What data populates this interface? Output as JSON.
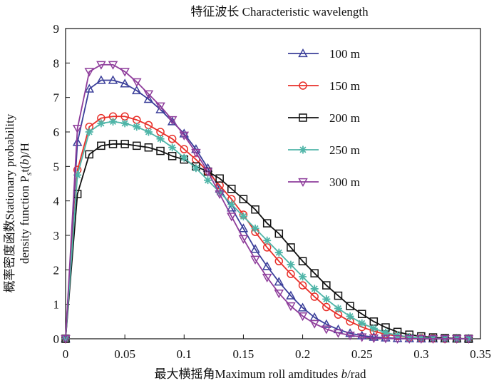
{
  "chart_data": {
    "type": "line",
    "title": "特征波长 Characteristic wavelength",
    "xlabel_prefix": "最大横摇角Maximum roll amditudes ",
    "xlabel_var": "b",
    "xlabel_suffix": "/rad",
    "ylabel_line1": "概率密度函数Stationary probability",
    "ylabel_line2_prefix": "density function P",
    "ylabel_line2_sub": "s",
    "ylabel_line2_mid": "t(",
    "ylabel_line2_var": "b",
    "ylabel_line2_suffix": ")/H",
    "xlim": [
      0,
      0.35
    ],
    "ylim": [
      0,
      9
    ],
    "xticks": [
      0,
      0.05,
      0.1,
      0.15,
      0.2,
      0.25,
      0.3,
      0.35
    ],
    "xtick_labels": [
      "0",
      "0.05",
      "0.1",
      "0.15",
      "0.2",
      "0.25",
      "0.3",
      "0.35"
    ],
    "yticks": [
      0,
      1,
      2,
      3,
      4,
      5,
      6,
      7,
      8,
      9
    ],
    "ytick_labels": [
      "0",
      "1",
      "2",
      "3",
      "4",
      "5",
      "6",
      "7",
      "8",
      "9"
    ],
    "legend_position": "top-right",
    "x": [
      0,
      0.01,
      0.02,
      0.03,
      0.04,
      0.05,
      0.06,
      0.07,
      0.08,
      0.09,
      0.1,
      0.11,
      0.12,
      0.13,
      0.14,
      0.15,
      0.16,
      0.17,
      0.18,
      0.19,
      0.2,
      0.21,
      0.22,
      0.23,
      0.24,
      0.25,
      0.26,
      0.27,
      0.28,
      0.29,
      0.3,
      0.31,
      0.32,
      0.33,
      0.34
    ],
    "series": [
      {
        "name": "100 m",
        "color": "#3b3f9a",
        "marker": "triangle-up",
        "values": [
          0,
          5.7,
          7.25,
          7.5,
          7.5,
          7.4,
          7.2,
          6.95,
          6.65,
          6.3,
          5.95,
          5.5,
          4.95,
          4.35,
          3.8,
          3.2,
          2.6,
          2.1,
          1.65,
          1.25,
          0.9,
          0.62,
          0.42,
          0.27,
          0.16,
          0.09,
          0.05,
          0.03,
          0.01,
          0.005,
          0,
          0,
          0,
          0,
          0
        ]
      },
      {
        "name": "150 m",
        "color": "#e8302a",
        "marker": "circle",
        "values": [
          0,
          4.9,
          6.15,
          6.4,
          6.45,
          6.45,
          6.35,
          6.2,
          6.0,
          5.8,
          5.5,
          5.2,
          4.85,
          4.45,
          4.05,
          3.6,
          3.1,
          2.65,
          2.25,
          1.88,
          1.55,
          1.22,
          0.92,
          0.7,
          0.5,
          0.34,
          0.22,
          0.13,
          0.08,
          0.04,
          0.02,
          0.01,
          0,
          0,
          0
        ]
      },
      {
        "name": "200 m",
        "color": "#111111",
        "marker": "square",
        "values": [
          0,
          4.2,
          5.35,
          5.6,
          5.65,
          5.65,
          5.6,
          5.55,
          5.45,
          5.3,
          5.2,
          5.0,
          4.85,
          4.65,
          4.35,
          4.05,
          3.75,
          3.35,
          3.05,
          2.65,
          2.25,
          1.9,
          1.55,
          1.25,
          0.95,
          0.72,
          0.5,
          0.33,
          0.2,
          0.12,
          0.07,
          0.04,
          0.02,
          0.01,
          0
        ]
      },
      {
        "name": "250 m",
        "color": "#4fb5a8",
        "marker": "star",
        "values": [
          0,
          4.75,
          6.0,
          6.25,
          6.3,
          6.25,
          6.15,
          6.0,
          5.8,
          5.55,
          5.25,
          4.95,
          4.6,
          4.25,
          3.9,
          3.55,
          3.2,
          2.85,
          2.5,
          2.15,
          1.8,
          1.45,
          1.15,
          0.88,
          0.65,
          0.45,
          0.3,
          0.18,
          0.1,
          0.05,
          0.03,
          0.01,
          0,
          0,
          0
        ]
      },
      {
        "name": "300 m",
        "color": "#8e3d9b",
        "marker": "triangle-down",
        "values": [
          0,
          6.1,
          7.75,
          7.95,
          7.95,
          7.75,
          7.45,
          7.1,
          6.75,
          6.35,
          5.9,
          5.4,
          4.85,
          4.2,
          3.55,
          2.9,
          2.3,
          1.78,
          1.32,
          0.95,
          0.66,
          0.44,
          0.28,
          0.17,
          0.1,
          0.05,
          0.02,
          0.01,
          0,
          0,
          0,
          0,
          0,
          0,
          0
        ]
      }
    ]
  }
}
